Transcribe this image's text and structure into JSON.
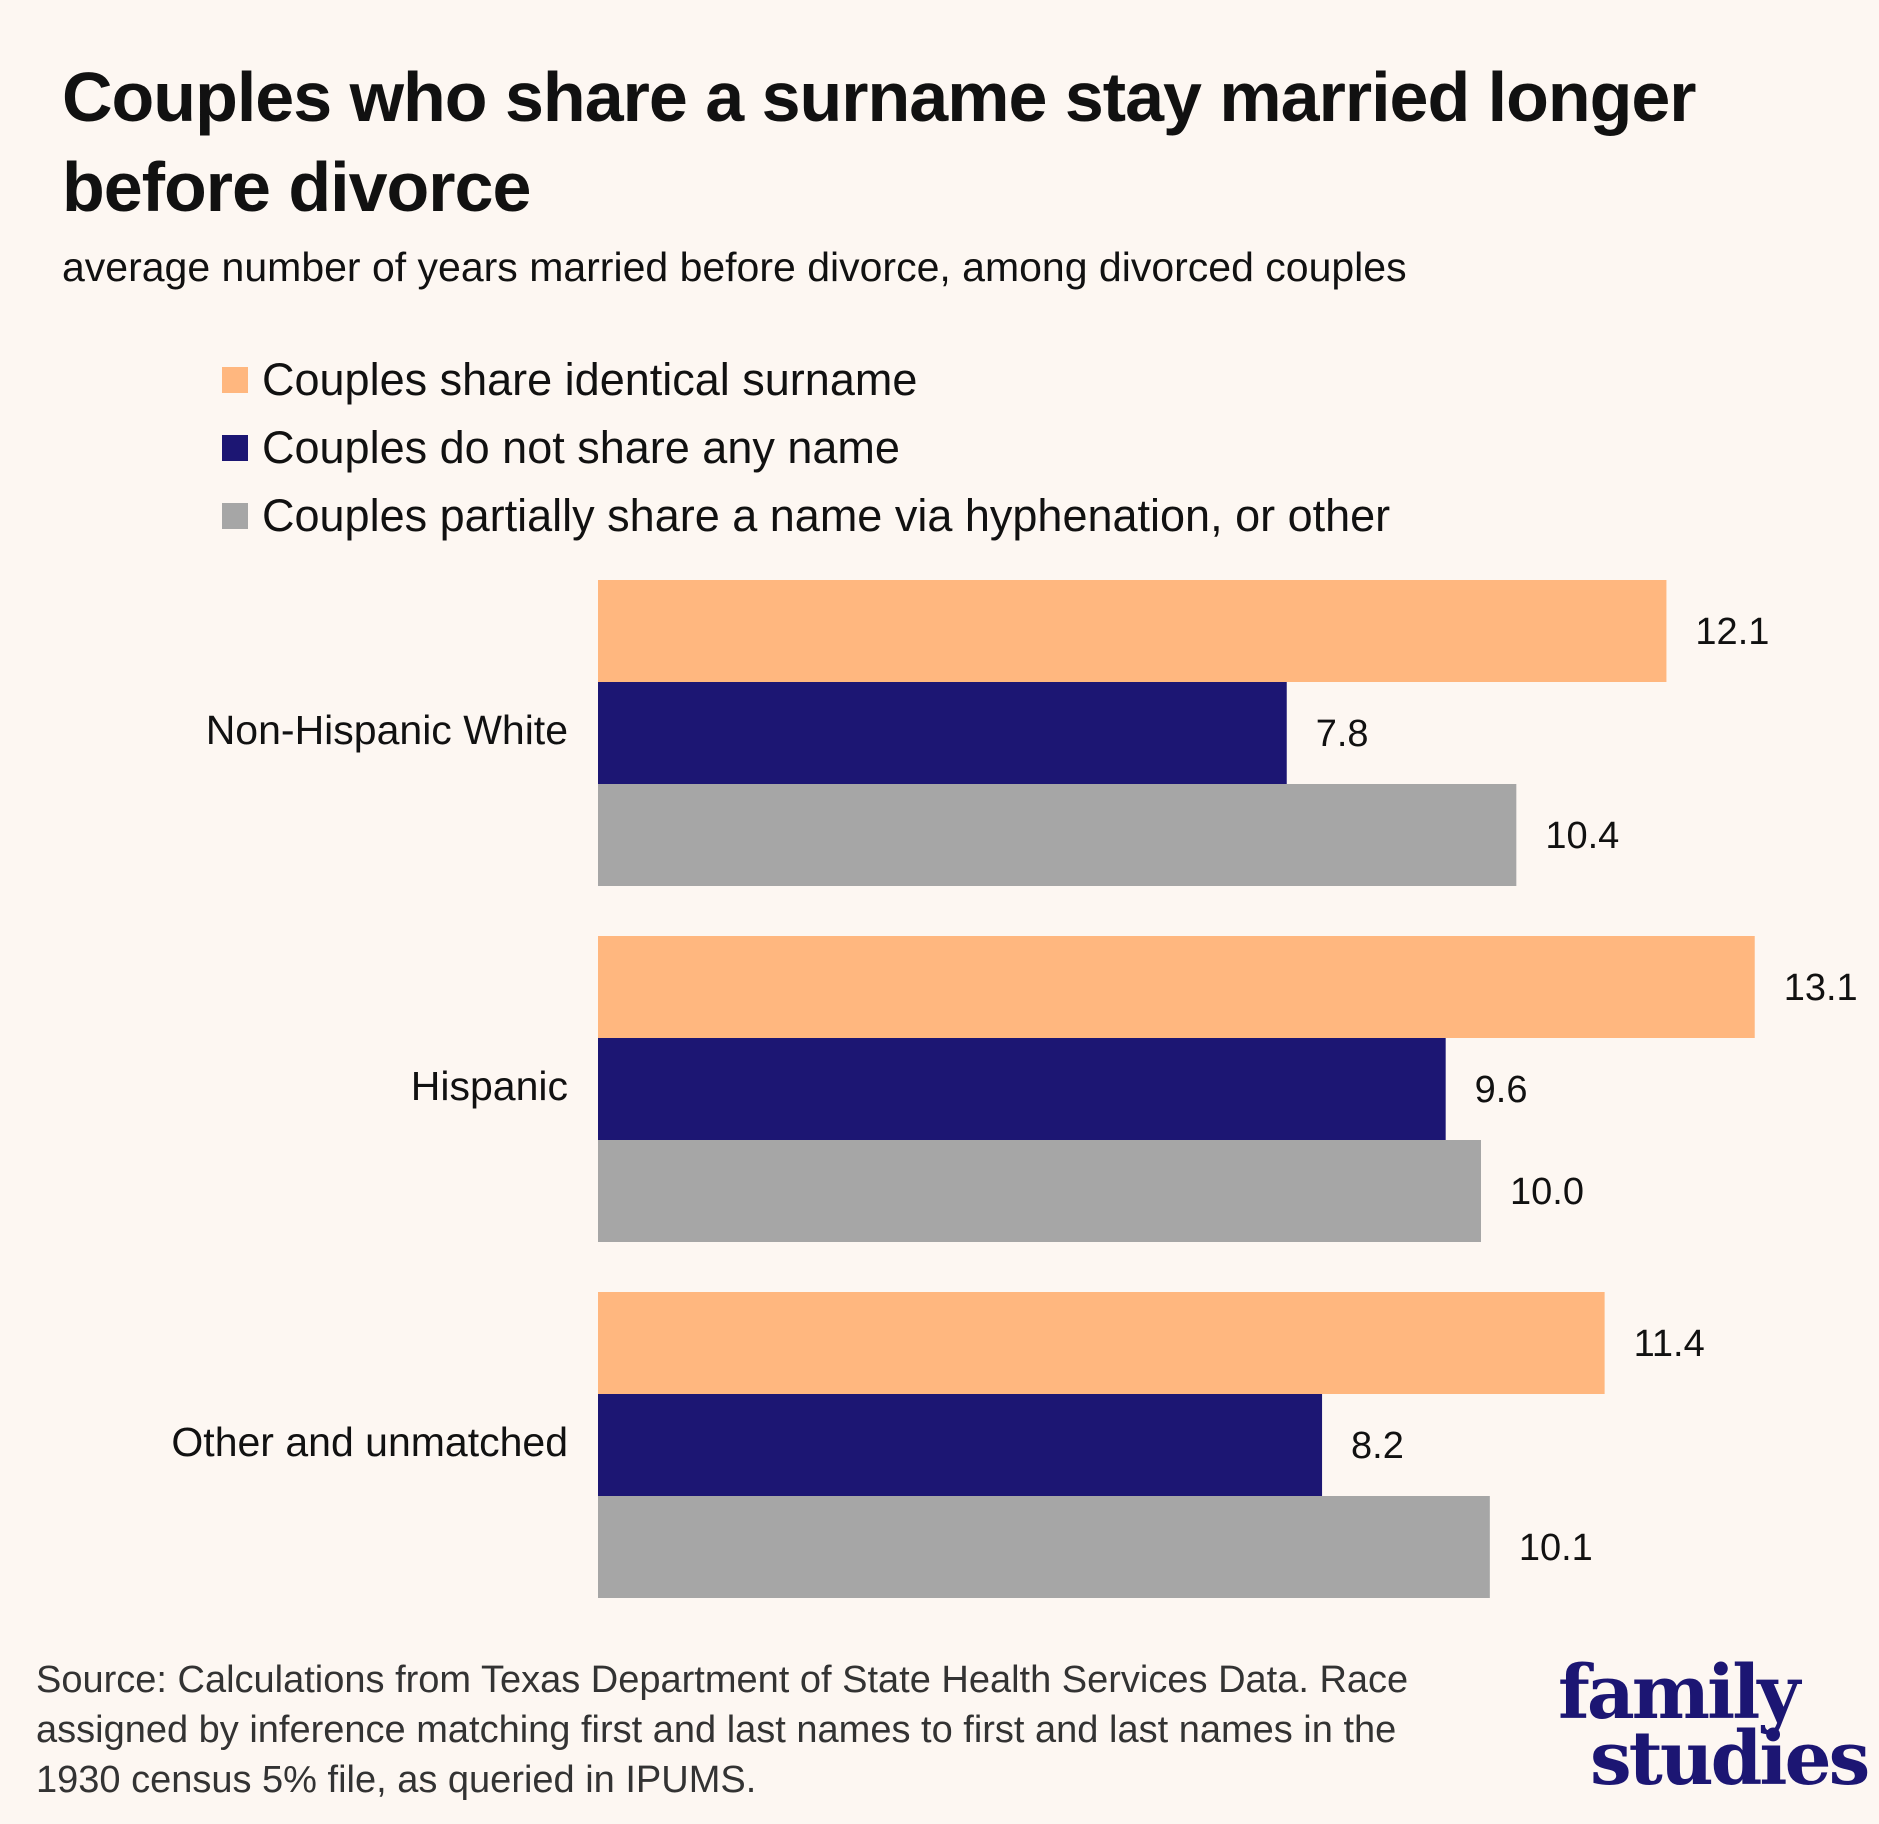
{
  "chart_data": {
    "type": "bar",
    "orientation": "horizontal",
    "title": "Couples who share a surname stay married longer before divorce",
    "subtitle": "average number of years married before divorce, among divorced couples",
    "categories": [
      "Non-Hispanic White",
      "Hispanic",
      "Other and unmatched"
    ],
    "series": [
      {
        "name": "Couples share identical surname",
        "color": "#ffb77f",
        "values": [
          12.1,
          13.1,
          11.4
        ]
      },
      {
        "name": "Couples do not share any name",
        "color": "#1c1673",
        "values": [
          7.8,
          9.6,
          8.2
        ]
      },
      {
        "name": "Couples partially share a name via hyphenation, or other",
        "color": "#a6a6a6",
        "values": [
          10.4,
          10.0,
          10.1
        ]
      }
    ],
    "value_labels": [
      [
        "12.1",
        "7.8",
        "10.4"
      ],
      [
        "13.1",
        "9.6",
        "10.0"
      ],
      [
        "11.4",
        "8.2",
        "10.1"
      ]
    ],
    "xlim": [
      0,
      14
    ],
    "grid": false,
    "legend_position": "top-left",
    "xlabel": "",
    "ylabel": ""
  },
  "source": "Source: Calculations from Texas Department of State Health Services Data. Race assigned by inference matching first and last names to first and last names in the 1930 census 5% file, as queried in IPUMS.",
  "logo": {
    "line1": "family",
    "line2": "studies"
  }
}
